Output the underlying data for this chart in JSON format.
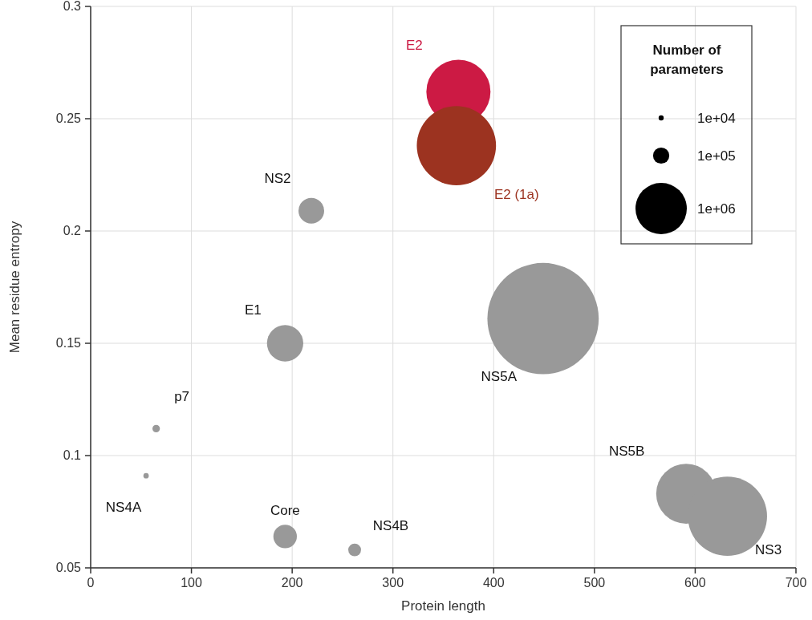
{
  "chart_data": {
    "type": "bubble",
    "xlabel": "Protein length",
    "ylabel": "Mean residue entropy",
    "legend_title": "Number of parameters",
    "xlim": [
      0,
      700
    ],
    "xticks": [
      0,
      100,
      200,
      300,
      400,
      500,
      600,
      700
    ],
    "ylim": [
      0.05,
      0.3
    ],
    "yticks": [
      0.05,
      0.1,
      0.15,
      0.2,
      0.25,
      0.3
    ],
    "grid": true,
    "size_legend": [
      {
        "value": 10000,
        "label": "1e+04"
      },
      {
        "value": 100000,
        "label": "1e+05"
      },
      {
        "value": 1000000,
        "label": "1e+06"
      }
    ],
    "series": [
      {
        "name": "E2",
        "color": "#cc1a44",
        "x": [
          365
        ],
        "values": [
          0.262
        ],
        "sizes": [
          1560000
        ]
      },
      {
        "name": "E2 (1a)",
        "color": "#9c3320",
        "x": [
          363
        ],
        "values": [
          0.238
        ],
        "sizes": [
          2380000
        ]
      },
      {
        "name": "NS2",
        "color": "#999999",
        "x": [
          219
        ],
        "values": [
          0.209
        ],
        "sizes": [
          250000
        ]
      },
      {
        "name": "E1",
        "color": "#999999",
        "x": [
          193
        ],
        "values": [
          0.15
        ],
        "sizes": [
          500000
        ]
      },
      {
        "name": "NS5A",
        "color": "#999999",
        "x": [
          449
        ],
        "values": [
          0.161
        ],
        "sizes": [
          4700000
        ]
      },
      {
        "name": "p7",
        "color": "#999999",
        "x": [
          65
        ],
        "values": [
          0.112
        ],
        "sizes": [
          21000
        ]
      },
      {
        "name": "NS4A",
        "color": "#999999",
        "x": [
          55
        ],
        "values": [
          0.091
        ],
        "sizes": [
          11000
        ]
      },
      {
        "name": "Core",
        "color": "#999999",
        "x": [
          193
        ],
        "values": [
          0.064
        ],
        "sizes": [
          210000
        ]
      },
      {
        "name": "NS4B",
        "color": "#999999",
        "x": [
          262
        ],
        "values": [
          0.058
        ],
        "sizes": [
          62000
        ]
      },
      {
        "name": "NS5B",
        "color": "#999999",
        "x": [
          591
        ],
        "values": [
          0.083
        ],
        "sizes": [
          1360000
        ]
      },
      {
        "name": "NS3",
        "color": "#999999",
        "x": [
          632
        ],
        "values": [
          0.073
        ],
        "sizes": [
          2380000
        ]
      }
    ]
  }
}
